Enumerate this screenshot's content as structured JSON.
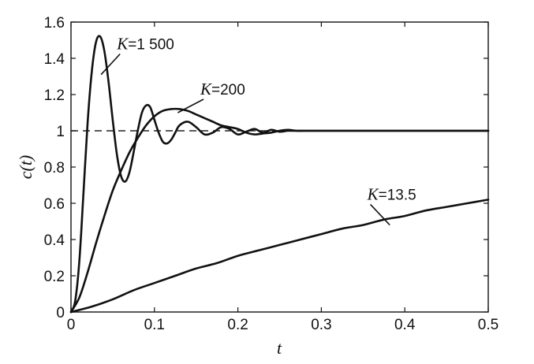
{
  "chart_data": {
    "type": "line",
    "title": "",
    "xlabel": "t",
    "ylabel": "c(t)",
    "xlim": [
      0,
      0.5
    ],
    "ylim": [
      0,
      1.6
    ],
    "xticks": [
      0,
      0.1,
      0.2,
      0.3,
      0.4,
      0.5
    ],
    "xtick_labels": [
      "0",
      "0.1",
      "0.2",
      "0.3",
      "0.4",
      "0.5"
    ],
    "yticks": [
      0,
      0.2,
      0.4,
      0.6,
      0.8,
      1,
      1.2,
      1.4,
      1.6
    ],
    "ytick_labels": [
      "0",
      "0.2",
      "0.4",
      "0.6",
      "0.8",
      "1",
      "1.2",
      "1.4",
      "1.6"
    ],
    "grid": false,
    "reference_line": {
      "y": 1,
      "style": "dashed"
    },
    "annotations": [
      {
        "k": "K",
        "text": "=1 500",
        "x": 0.055,
        "y": 1.45,
        "point_x": 0.036,
        "point_y": 1.31
      },
      {
        "k": "K",
        "text": "=200",
        "x": 0.155,
        "y": 1.2,
        "point_x": 0.128,
        "point_y": 1.1
      },
      {
        "k": "K",
        "text": "=13.5",
        "x": 0.355,
        "y": 0.62,
        "point_x": 0.382,
        "point_y": 0.48
      }
    ],
    "series": [
      {
        "x": [
          0,
          0.005,
          0.01,
          0.015,
          0.02,
          0.025,
          0.03,
          0.035,
          0.04,
          0.045,
          0.05,
          0.055,
          0.06,
          0.065,
          0.07,
          0.075,
          0.08,
          0.085,
          0.09,
          0.095,
          0.1,
          0.105,
          0.11,
          0.115,
          0.12,
          0.125,
          0.13,
          0.14,
          0.15,
          0.16,
          0.17,
          0.18,
          0.19,
          0.2,
          0.21,
          0.22,
          0.23,
          0.24,
          0.25,
          0.26,
          0.27,
          0.28,
          0.3,
          0.35,
          0.4,
          0.45,
          0.5
        ],
        "values": [
          0,
          0.06,
          0.28,
          0.66,
          1.05,
          1.33,
          1.49,
          1.52,
          1.44,
          1.27,
          1.06,
          0.87,
          0.75,
          0.72,
          0.77,
          0.88,
          1.0,
          1.1,
          1.14,
          1.13,
          1.06,
          0.99,
          0.94,
          0.93,
          0.95,
          0.99,
          1.03,
          1.05,
          1.02,
          0.98,
          0.99,
          1.02,
          1.01,
          0.98,
          0.995,
          1.01,
          0.99,
          1.005,
          0.995,
          1.0,
          1.0,
          1.0,
          1.0,
          1.0,
          1.0,
          1.0,
          1.0
        ]
      },
      {
        "x": [
          0,
          0.01,
          0.02,
          0.03,
          0.04,
          0.05,
          0.06,
          0.07,
          0.08,
          0.09,
          0.1,
          0.11,
          0.12,
          0.13,
          0.14,
          0.15,
          0.16,
          0.17,
          0.18,
          0.19,
          0.2,
          0.21,
          0.22,
          0.23,
          0.24,
          0.25,
          0.26,
          0.27,
          0.28,
          0.3,
          0.35,
          0.4,
          0.45,
          0.5
        ],
        "values": [
          0,
          0.08,
          0.22,
          0.38,
          0.53,
          0.67,
          0.78,
          0.88,
          0.96,
          1.03,
          1.08,
          1.11,
          1.12,
          1.12,
          1.11,
          1.09,
          1.07,
          1.05,
          1.03,
          1.02,
          1.01,
          0.99,
          0.98,
          0.985,
          0.99,
          1.0,
          1.005,
          1.0,
          1.0,
          1.0,
          1.0,
          1.0,
          1.0,
          1.0
        ]
      },
      {
        "x": [
          0,
          0.025,
          0.05,
          0.075,
          0.1,
          0.125,
          0.15,
          0.175,
          0.2,
          0.225,
          0.25,
          0.275,
          0.3,
          0.325,
          0.35,
          0.375,
          0.4,
          0.425,
          0.45,
          0.475,
          0.5
        ],
        "values": [
          0,
          0.03,
          0.07,
          0.12,
          0.16,
          0.2,
          0.24,
          0.27,
          0.31,
          0.34,
          0.37,
          0.4,
          0.43,
          0.46,
          0.48,
          0.51,
          0.53,
          0.56,
          0.58,
          0.6,
          0.62
        ]
      }
    ]
  }
}
